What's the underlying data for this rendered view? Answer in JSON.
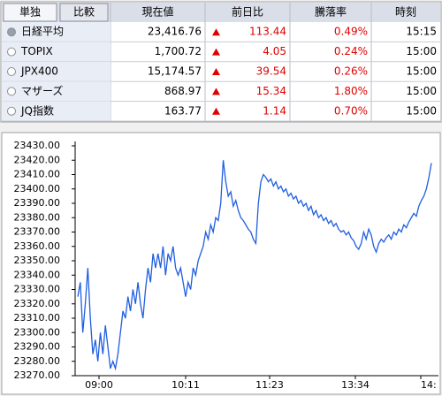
{
  "tabs": [
    "単独",
    "比較"
  ],
  "table": {
    "headers": [
      "現在値",
      "前日比",
      "騰落率",
      "時刻"
    ],
    "rows": [
      {
        "name": "日経平均",
        "price": "23,416.76",
        "change": "113.44",
        "rate": "0.49%",
        "time": "15:15"
      },
      {
        "name": "TOPIX",
        "price": "1,700.72",
        "change": "4.05",
        "rate": "0.24%",
        "time": "15:00"
      },
      {
        "name": "JPX400",
        "price": "15,174.57",
        "change": "39.54",
        "rate": "0.26%",
        "time": "15:00"
      },
      {
        "name": "マザーズ",
        "price": "868.97",
        "change": "15.34",
        "rate": "1.80%",
        "time": "15:00"
      },
      {
        "name": "JQ指数",
        "price": "163.77",
        "change": "1.14",
        "rate": "0.70%",
        "time": "15:00"
      }
    ]
  },
  "chart": {
    "type": "line",
    "color": "#1f5fe0",
    "values": [
      23325,
      23335,
      23300,
      23320,
      23345,
      23310,
      23285,
      23295,
      23280,
      23300,
      23285,
      23305,
      23290,
      23275,
      23280,
      23275,
      23285,
      23300,
      23315,
      23310,
      23325,
      23315,
      23330,
      23320,
      23335,
      23320,
      23310,
      23330,
      23345,
      23335,
      23355,
      23345,
      23355,
      23345,
      23360,
      23340,
      23355,
      23350,
      23360,
      23345,
      23340,
      23345,
      23335,
      23325,
      23335,
      23330,
      23345,
      23340,
      23350,
      23355,
      23360,
      23370,
      23365,
      23375,
      23370,
      23380,
      23378,
      23390,
      23420,
      23405,
      23395,
      23398,
      23388,
      23392,
      23385,
      23380,
      23378,
      23375,
      23372,
      23370,
      23365,
      23362,
      23390,
      23405,
      23410,
      23408,
      23405,
      23407,
      23402,
      23405,
      23400,
      23402,
      23398,
      23400,
      23395,
      23397,
      23393,
      23395,
      23390,
      23392,
      23388,
      23390,
      23385,
      23388,
      23382,
      23385,
      23380,
      23382,
      23378,
      23380,
      23376,
      23378,
      23374,
      23376,
      23372,
      23370,
      23371,
      23368,
      23370,
      23366,
      23364,
      23360,
      23358,
      23362,
      23370,
      23365,
      23372,
      23368,
      23360,
      23356,
      23362,
      23365,
      23363,
      23366,
      23368,
      23365,
      23370,
      23368,
      23372,
      23370,
      23375,
      23373,
      23377,
      23380,
      23383,
      23381,
      23388,
      23392,
      23395,
      23400,
      23408,
      23418
    ],
    "ylim": [
      23270,
      23430
    ],
    "yticks": [
      {
        "value": 23270,
        "label": "23270.00"
      },
      {
        "value": 23280,
        "label": "23280.00"
      },
      {
        "value": 23290,
        "label": "23290.00"
      },
      {
        "value": 23300,
        "label": "23300.00"
      },
      {
        "value": 23310,
        "label": "23310.00"
      },
      {
        "value": 23320,
        "label": "23320.00"
      },
      {
        "value": 23330,
        "label": "23330.00"
      },
      {
        "value": 23340,
        "label": "23340.00"
      },
      {
        "value": 23350,
        "label": "23350.00"
      },
      {
        "value": 23360,
        "label": "23360.00"
      },
      {
        "value": 23370,
        "label": "23370.00"
      },
      {
        "value": 23380,
        "label": "23380.00"
      },
      {
        "value": 23390,
        "label": "23390.00"
      },
      {
        "value": 23400,
        "label": "23400.00"
      },
      {
        "value": 23410,
        "label": "23410.00"
      },
      {
        "value": 23420,
        "label": "23420.00"
      },
      {
        "value": 23430,
        "label": "23430.00"
      }
    ],
    "xticks": [
      "09:00",
      "10:11",
      "11:23",
      "13:34",
      "14:"
    ]
  }
}
